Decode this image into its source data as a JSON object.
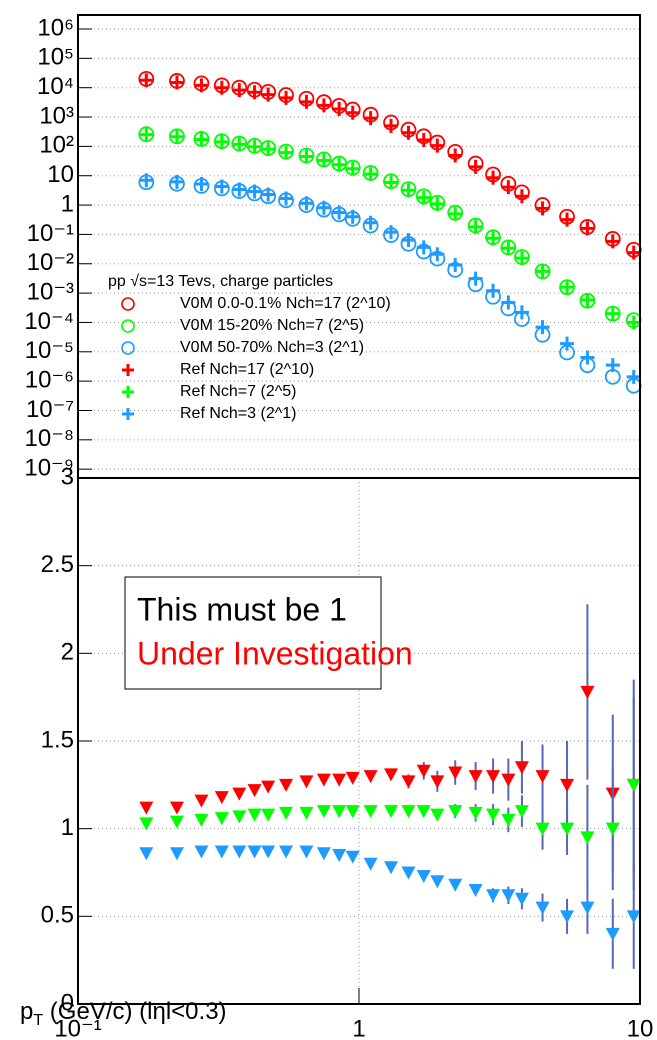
{
  "chart_data": [
    {
      "type": "scatter",
      "xlim": [
        0.1,
        10
      ],
      "ylim": [
        5e-10,
        3000000
      ],
      "log_x": true,
      "log_y": true,
      "grid": true,
      "yticks": [
        {
          "value": 1e-09,
          "label": "10⁻⁹"
        },
        {
          "value": 1e-08,
          "label": "10⁻⁸"
        },
        {
          "value": 1e-07,
          "label": "10⁻⁷"
        },
        {
          "value": 1e-06,
          "label": "10⁻⁶"
        },
        {
          "value": 1e-05,
          "label": "10⁻⁵"
        },
        {
          "value": 0.0001,
          "label": "10⁻⁴"
        },
        {
          "value": 0.001,
          "label": "10⁻³"
        },
        {
          "value": 0.01,
          "label": "10⁻²"
        },
        {
          "value": 0.1,
          "label": "10⁻¹"
        },
        1,
        10,
        {
          "value": 100,
          "label": "10²"
        },
        {
          "value": 1000,
          "label": "10³"
        },
        {
          "value": 10000,
          "label": "10⁴"
        },
        {
          "value": 100000,
          "label": "10⁵"
        },
        {
          "value": 1000000,
          "label": "10⁶"
        }
      ],
      "legend_title": "pp √s=13 Tevs, charge particles",
      "legend": "left",
      "x": [
        0.175,
        0.225,
        0.275,
        0.325,
        0.375,
        0.425,
        0.475,
        0.55,
        0.65,
        0.75,
        0.85,
        0.95,
        1.1,
        1.3,
        1.5,
        1.7,
        1.9,
        2.2,
        2.6,
        3.0,
        3.4,
        3.8,
        4.5,
        5.5,
        6.5,
        8,
        9.5
      ],
      "series": [
        {
          "name": "V0M 0.0-0.1% Nch=17 (2^10)",
          "color": "#ff0000",
          "marker": "circle",
          "values": [
            20000,
            17000,
            14000,
            12000,
            10000,
            8500,
            7200,
            5600,
            4200,
            3200,
            2400,
            1800,
            1200,
            650,
            370,
            220,
            135,
            65,
            26,
            11,
            5.3,
            2.7,
            1.0,
            0.4,
            0.18,
            0.07,
            0.03
          ]
        },
        {
          "name": "V0M 15-20% Nch=7 (2^5)",
          "color": "#00ff00",
          "marker": "circle",
          "values": [
            260,
            220,
            180,
            150,
            125,
            105,
            88,
            67,
            49,
            36,
            26,
            19,
            12.5,
            6.5,
            3.5,
            2.0,
            1.2,
            0.55,
            0.2,
            0.08,
            0.036,
            0.017,
            0.0055,
            0.0016,
            0.00055,
            0.0002,
            0.00012
          ]
        },
        {
          "name": "V0M 50-70% Nch=3 (2^1)",
          "color": "#1e9bff",
          "marker": "circle",
          "values": [
            6,
            5.3,
            4.5,
            3.7,
            3.0,
            2.5,
            2.0,
            1.45,
            1.0,
            0.7,
            0.48,
            0.34,
            0.2,
            0.095,
            0.048,
            0.026,
            0.015,
            0.0062,
            0.002,
            0.00075,
            0.0003,
            0.00013,
            3.8e-05,
            9.5e-06,
            3.5e-06,
            1.4e-06,
            7e-07
          ]
        },
        {
          "name": "Ref Nch=17 (2^10)",
          "color": "#ff0000",
          "marker": "cross",
          "values": [
            18000,
            15000,
            12000,
            10000,
            8300,
            7000,
            5800,
            4500,
            3300,
            2500,
            1870,
            1400,
            920,
            500,
            290,
            165,
            106,
            49,
            20,
            8.5,
            4.1,
            2.0,
            0.77,
            0.32,
            0.16,
            0.058,
            0.024
          ]
        },
        {
          "name": "Ref Nch=7 (2^5)",
          "color": "#00ff00",
          "marker": "cross",
          "values": [
            252,
            212,
            171,
            142,
            117,
            97,
            81,
            61,
            45,
            33,
            23.6,
            17.3,
            11.4,
            5.9,
            3.2,
            1.8,
            1.1,
            0.5,
            0.18,
            0.074,
            0.034,
            0.0155,
            0.0055,
            0.0016,
            0.00058,
            0.0002,
            0.0001
          ]
        },
        {
          "name": "Ref Nch=3 (2^1)",
          "color": "#1e9bff",
          "marker": "cross",
          "values": [
            7,
            6.2,
            5.2,
            4.3,
            3.4,
            2.9,
            2.3,
            1.67,
            1.15,
            0.81,
            0.56,
            0.4,
            0.25,
            0.12,
            0.064,
            0.036,
            0.021,
            0.0091,
            0.0031,
            0.0012,
            0.00048,
            0.00022,
            6.9e-05,
            1.9e-05,
            6.4e-06,
            3.5e-06,
            1.4e-06
          ]
        }
      ]
    },
    {
      "type": "scatter",
      "xlim": [
        0.1,
        10
      ],
      "ylim": [
        0,
        3
      ],
      "log_x": true,
      "grid": true,
      "xticks": [
        {
          "value": 0.1,
          "label": "10⁻¹"
        },
        1,
        10
      ],
      "yticks": [
        0,
        0.5,
        1,
        1.5,
        2,
        2.5,
        3
      ],
      "annotations": [
        {
          "text": "This must be 1",
          "color": "#000000"
        },
        {
          "text": "Under Investigation",
          "color": "#ff0000"
        }
      ],
      "x_label": {
        "text": "p",
        "subscript": "T",
        "rest": " (GeV/c) (lηl<0.3)"
      },
      "x": [
        0.175,
        0.225,
        0.275,
        0.325,
        0.375,
        0.425,
        0.475,
        0.55,
        0.65,
        0.75,
        0.85,
        0.95,
        1.1,
        1.3,
        1.5,
        1.7,
        1.9,
        2.2,
        2.6,
        3.0,
        3.4,
        3.8,
        4.5,
        5.5,
        6.5,
        8,
        9.5
      ],
      "series": [
        {
          "color": "#ff0000",
          "marker": "triangle-down",
          "values": [
            1.12,
            1.12,
            1.16,
            1.18,
            1.2,
            1.22,
            1.24,
            1.25,
            1.27,
            1.28,
            1.28,
            1.29,
            1.3,
            1.31,
            1.27,
            1.33,
            1.27,
            1.32,
            1.3,
            1.3,
            1.28,
            1.35,
            1.3,
            1.25,
            1.78,
            1.2,
            1.25
          ],
          "errors": [
            0.02,
            0.02,
            0.02,
            0.02,
            0.02,
            0.02,
            0.02,
            0.02,
            0.02,
            0.02,
            0.02,
            0.02,
            0.03,
            0.03,
            0.04,
            0.05,
            0.06,
            0.07,
            0.08,
            0.1,
            0.12,
            0.15,
            0.18,
            0.25,
            0.5,
            0.45,
            0.5
          ]
        },
        {
          "color": "#00ff00",
          "marker": "triangle-down",
          "values": [
            1.03,
            1.04,
            1.05,
            1.06,
            1.07,
            1.08,
            1.08,
            1.09,
            1.09,
            1.1,
            1.1,
            1.1,
            1.1,
            1.1,
            1.1,
            1.1,
            1.08,
            1.1,
            1.09,
            1.08,
            1.05,
            1.1,
            1.0,
            1.0,
            0.95,
            1.0,
            1.25
          ],
          "errors": [
            0.01,
            0.01,
            0.01,
            0.01,
            0.01,
            0.01,
            0.01,
            0.01,
            0.01,
            0.01,
            0.01,
            0.01,
            0.02,
            0.02,
            0.02,
            0.03,
            0.03,
            0.04,
            0.05,
            0.06,
            0.07,
            0.09,
            0.12,
            0.15,
            0.3,
            0.35,
            0.6
          ]
        },
        {
          "color": "#1e9bff",
          "marker": "triangle-down",
          "values": [
            0.86,
            0.86,
            0.87,
            0.87,
            0.87,
            0.87,
            0.87,
            0.87,
            0.87,
            0.86,
            0.85,
            0.84,
            0.8,
            0.78,
            0.75,
            0.73,
            0.7,
            0.68,
            0.65,
            0.62,
            0.62,
            0.6,
            0.55,
            0.5,
            0.55,
            0.4,
            0.5
          ],
          "errors": [
            0.01,
            0.01,
            0.01,
            0.01,
            0.01,
            0.01,
            0.01,
            0.01,
            0.01,
            0.01,
            0.01,
            0.01,
            0.01,
            0.01,
            0.02,
            0.02,
            0.02,
            0.03,
            0.03,
            0.04,
            0.05,
            0.06,
            0.08,
            0.1,
            0.15,
            0.2,
            0.3
          ]
        }
      ]
    }
  ]
}
